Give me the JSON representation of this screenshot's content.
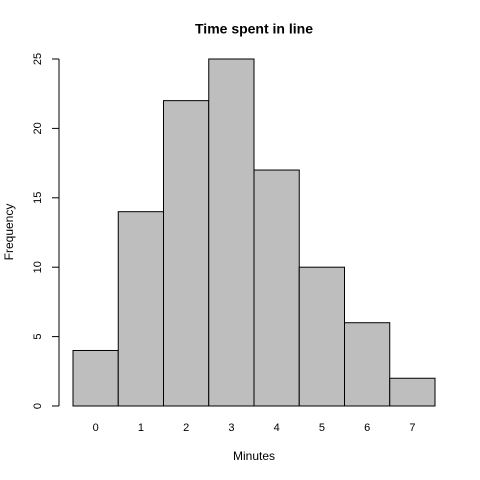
{
  "chart_data": {
    "type": "bar",
    "title": "Time spent in line",
    "x_label": "Minutes",
    "y_label": "Frequency",
    "categories": [
      "0",
      "1",
      "2",
      "3",
      "4",
      "5",
      "6",
      "7"
    ],
    "values": [
      4,
      14,
      22,
      25,
      17,
      10,
      6,
      2
    ],
    "color": "#bebebe",
    "ylim": [
      0,
      25
    ],
    "yticks": [
      0,
      5,
      10,
      15,
      20,
      25
    ],
    "grid": false
  }
}
